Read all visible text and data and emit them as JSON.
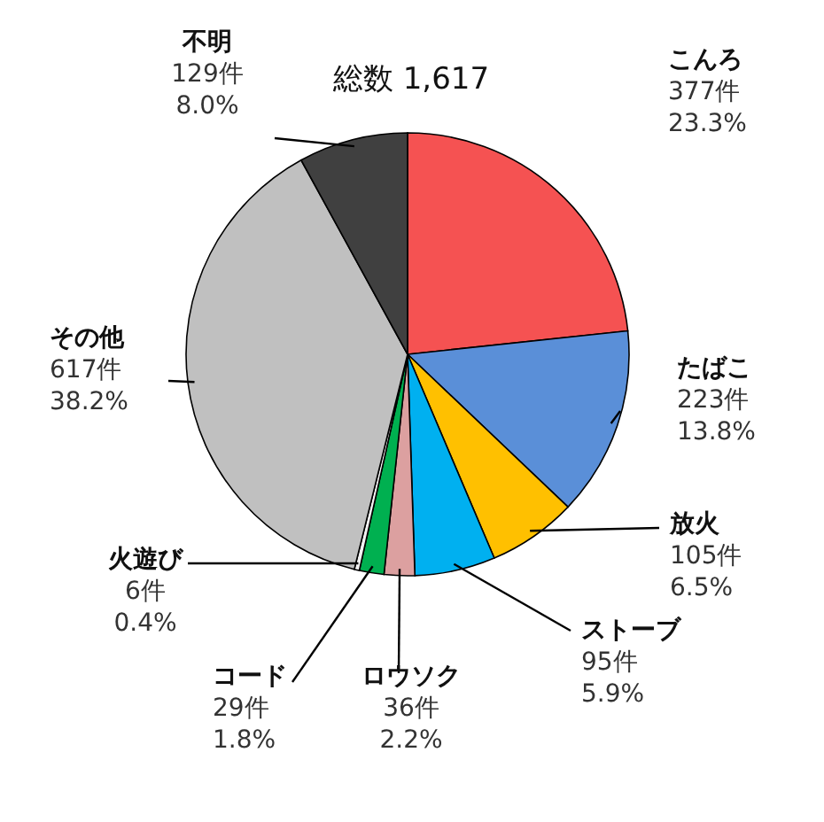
{
  "chart_data": {
    "type": "pie",
    "title": "総数 1,617",
    "categories": [
      "こんろ",
      "たばこ",
      "放火",
      "ストーブ",
      "ロウソク",
      "コード",
      "火遊び",
      "その他",
      "不明"
    ],
    "values": [
      377,
      223,
      105,
      95,
      36,
      29,
      6,
      617,
      129
    ],
    "value_labels": [
      "377件\n23.3%",
      "223件\n13.8%",
      "105件\n6.5%",
      "95件\n5.9%",
      "36件\n2.2%",
      "29件\n1.8%",
      "6件\n0.4%",
      "617件\n38.2%",
      "129件\n8.0%"
    ],
    "colors": [
      "#f55252",
      "#5a8fd8",
      "#ffc000",
      "#00b0f0",
      "#dca0a0",
      "#00b050",
      "#f2f2f2",
      "#c0c0c0",
      "#404040"
    ]
  }
}
